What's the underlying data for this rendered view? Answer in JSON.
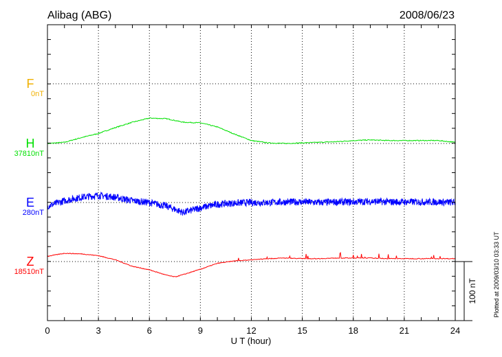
{
  "chart_data": {
    "type": "line",
    "title": "Alibag (ABG)",
    "date": "2008/06/23",
    "xlabel": "U T (hour)",
    "xlim": [
      0,
      24
    ],
    "xticks": [
      0,
      3,
      6,
      9,
      12,
      15,
      18,
      21,
      24
    ],
    "scale_bar": "100 nT",
    "footer": "Plotted at 2009/03/10 03:33 UT",
    "grid": true,
    "series": [
      {
        "name": "F",
        "baseline_label": "0nT",
        "color": "#f0b000",
        "hours": [],
        "values_nT": []
      },
      {
        "name": "H",
        "baseline_label": "37810nT",
        "color": "#00e000",
        "hours": [
          0,
          1,
          2,
          3,
          4,
          5,
          6,
          7,
          8,
          9,
          10,
          11,
          12,
          13,
          14,
          15,
          16,
          17,
          18,
          19,
          20,
          21,
          22,
          23,
          24
        ],
        "values_nT": [
          0,
          2,
          10,
          17,
          27,
          36,
          43,
          42,
          36,
          35,
          28,
          16,
          5,
          1,
          0,
          1,
          2,
          3,
          5,
          6,
          5,
          5,
          5,
          5,
          2
        ]
      },
      {
        "name": "E",
        "baseline_label": "280nT",
        "color": "#0000ff",
        "hours": [
          0,
          1,
          2,
          3,
          4,
          5,
          6,
          7,
          8,
          9,
          10,
          11,
          12,
          13,
          14,
          15,
          16,
          17,
          18,
          19,
          20,
          21,
          22,
          23,
          24
        ],
        "values_nT": [
          -6,
          3,
          9,
          12,
          9,
          3,
          0,
          -6,
          -17,
          -9,
          -3,
          -1,
          0,
          0,
          1,
          1,
          0,
          1,
          1,
          2,
          1,
          1,
          1,
          1,
          0
        ]
      },
      {
        "name": "Z",
        "baseline_label": "18510nT",
        "color": "#ff0000",
        "hours": [
          0,
          1,
          2,
          3,
          4,
          5,
          6,
          7,
          7.5,
          8,
          9,
          10,
          11,
          12,
          13,
          14,
          15,
          16,
          17,
          18,
          19,
          20,
          21,
          22,
          23,
          24
        ],
        "values_nT": [
          9,
          14,
          13,
          10,
          3,
          -8,
          -14,
          -23,
          -26,
          -22,
          -13,
          -3,
          1,
          3,
          5,
          6,
          5,
          5,
          6,
          6,
          6,
          5,
          5,
          5,
          5,
          5
        ]
      }
    ]
  }
}
